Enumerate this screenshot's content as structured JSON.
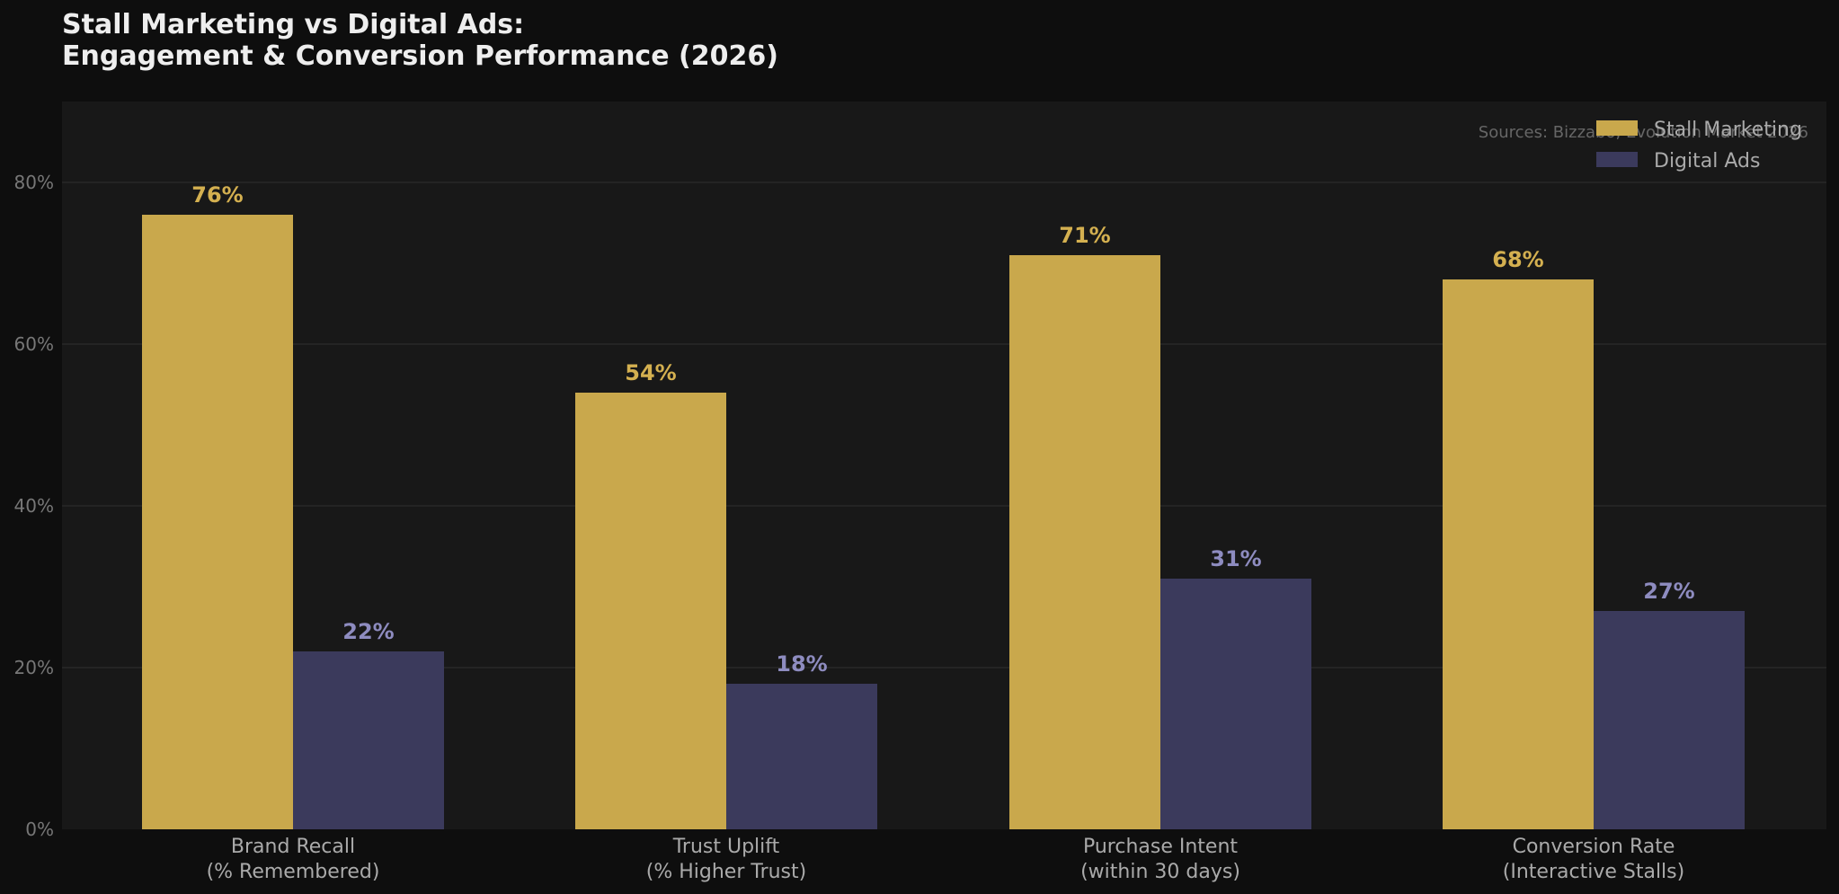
{
  "title_lines": [
    "Stall Marketing vs Digital Ads:",
    "Engagement & Conversion Performance (2026)"
  ],
  "source_note": "Sources: Bizzabo, Evolution Market 2026",
  "colors": {
    "page_background": "#0e0e0e",
    "plot_background": "#181818",
    "grid": "#2c2c2c",
    "stall_bar": "#c9a84c",
    "digital_bar": "#3b3a5c",
    "stall_label": "#d4b050",
    "digital_label": "#8e8cc0"
  },
  "chart_data": {
    "type": "bar",
    "title": "Stall Marketing vs Digital Ads: Engagement & Conversion Performance (2026)",
    "categories": [
      [
        "Brand Recall",
        "(% Remembered)"
      ],
      [
        "Trust Uplift",
        "(% Higher Trust)"
      ],
      [
        "Purchase Intent",
        "(within 30 days)"
      ],
      [
        "Conversion Rate",
        "(Interactive Stalls)"
      ]
    ],
    "series": [
      {
        "name": "Stall Marketing",
        "values": [
          76,
          54,
          71,
          68
        ],
        "labels": [
          "76%",
          "54%",
          "71%",
          "68%"
        ],
        "color": "#c9a84c",
        "label_color": "#d4b050"
      },
      {
        "name": "Digital Ads",
        "values": [
          22,
          18,
          31,
          27
        ],
        "labels": [
          "22%",
          "18%",
          "31%",
          "27%"
        ],
        "color": "#3b3a5c",
        "label_color": "#8e8cc0"
      }
    ],
    "ylim": [
      0,
      90
    ],
    "yticks": [
      0,
      20,
      40,
      60,
      80
    ],
    "ytick_labels": [
      "0%",
      "20%",
      "40%",
      "60%",
      "80%"
    ],
    "xlabel": "",
    "ylabel": "",
    "grid": true,
    "legend": "top-right"
  }
}
